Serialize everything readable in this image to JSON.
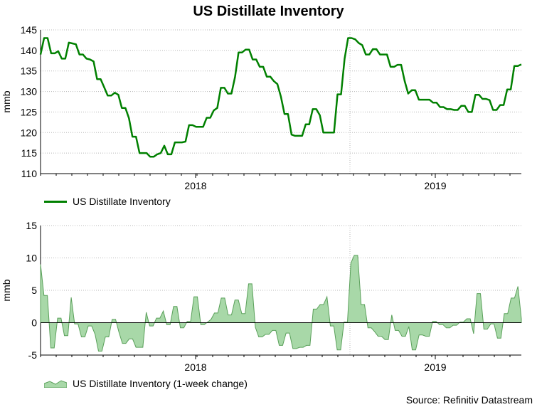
{
  "title": "US Distillate Inventory",
  "source": "Source: Refinitiv Datastream",
  "colors": {
    "line": "#008000",
    "area_fill": "#a8d8a8",
    "area_stroke": "#5aa05a",
    "grid": "#b8b8b8"
  },
  "chart_data": [
    {
      "type": "line",
      "ylabel": "mmb",
      "ylim": [
        110,
        145
      ],
      "yticks": [
        110,
        115,
        120,
        125,
        130,
        135,
        140,
        145
      ],
      "xtick_labels": [
        "2018",
        "2019"
      ],
      "legend": "US Distillate Inventory",
      "series": [
        {
          "name": "US Distillate Inventory",
          "values": [
            139,
            143,
            143,
            139.3,
            139.3,
            139.8,
            138,
            138,
            141.9,
            141.7,
            141.5,
            139,
            139,
            138,
            137.8,
            137.3,
            133,
            133,
            131,
            129,
            129,
            129.7,
            129.2,
            126,
            126,
            123.5,
            119,
            119,
            115,
            115,
            115,
            114.1,
            114.1,
            114.7,
            115,
            116.8,
            114.7,
            114.7,
            117.6,
            117.6,
            117.6,
            117.8,
            121.8,
            121.8,
            121.4,
            121.4,
            121.4,
            123.6,
            123.6,
            125.4,
            126,
            130.9,
            130.9,
            129.5,
            129.5,
            133.5,
            139.5,
            139.5,
            140.2,
            140.2,
            137.8,
            137.8,
            136,
            136,
            133.6,
            133.6,
            132.5,
            131.8,
            128.7,
            124.5,
            124.5,
            119.5,
            119.2,
            119.2,
            119.2,
            122,
            122,
            125.7,
            125.7,
            124.2,
            120,
            120,
            120,
            120,
            129.3,
            129.3,
            138,
            143,
            143,
            142.7,
            141.8,
            141.3,
            139,
            139,
            140.3,
            140.3,
            139,
            139,
            139,
            136,
            136,
            136.5,
            136.5,
            132.5,
            129.5,
            130.3,
            130.3,
            128,
            128,
            128,
            128,
            127.3,
            127.3,
            126.2,
            126.2,
            125.7,
            125.7,
            125.5,
            125.5,
            126.5,
            126.5,
            125,
            125,
            129.2,
            129.2,
            128.2,
            128.2,
            127.9,
            125.5,
            125.5,
            126.7,
            126.7,
            130.5,
            130.5,
            136.2,
            136.2,
            136.6
          ]
        }
      ]
    },
    {
      "type": "area",
      "ylabel": "mmb",
      "ylim": [
        -5,
        15
      ],
      "yticks": [
        -5,
        0,
        5,
        10,
        15
      ],
      "xtick_labels": [
        "2018",
        "2019"
      ],
      "legend": "US Distillate Inventory (1-week change)",
      "series": [
        {
          "name": "US Distillate Inventory (1-week change)",
          "values": [
            9,
            4.2,
            4.2,
            -3.9,
            -3.9,
            0.7,
            0.7,
            -2,
            -2,
            3.9,
            -0.2,
            -0.2,
            -2.2,
            -2.2,
            -0.5,
            -0.5,
            -1.8,
            -4.4,
            -4.4,
            -2.2,
            -2.2,
            0.5,
            0.5,
            -1.5,
            -3.2,
            -3.2,
            -2.5,
            -2.5,
            -3.8,
            -3.8,
            -3.8,
            1.6,
            -0.5,
            -0.5,
            0.7,
            0.7,
            1.8,
            -0.3,
            -0.3,
            2.5,
            2.5,
            -0.8,
            -0.8,
            0.2,
            0.2,
            4,
            4,
            -0.3,
            -0.3,
            0.1,
            0.5,
            1.5,
            1.5,
            3.8,
            3.8,
            1.2,
            1.2,
            3.5,
            3.5,
            1.4,
            1.4,
            6,
            6,
            -0.7,
            -2.2,
            -2.2,
            -1.8,
            -1.8,
            -1.2,
            -1.2,
            -3.5,
            -3.5,
            -1.6,
            -1.6,
            -4,
            -4,
            -3.8,
            -3.8,
            -3.5,
            -3.5,
            2.1,
            2.1,
            2.8,
            2.8,
            4,
            -0.5,
            -0.5,
            -4.2,
            -4.2,
            0.1,
            0.1,
            9.2,
            10.4,
            10.4,
            2.8,
            2.8,
            -0.8,
            -0.8,
            -1.4,
            -2.1,
            -2.1,
            -2.6,
            -2.6,
            1.2,
            -1.2,
            -1.2,
            -2.1,
            -2.1,
            -0.6,
            -4.2,
            -4.2,
            -1.9,
            -1.9,
            -2.1,
            -2.1,
            0.2,
            0.2,
            -0.3,
            -0.3,
            -0.8,
            -0.8,
            -0.4,
            -0.4,
            0.1,
            0.1,
            0.6,
            0.6,
            -1.7,
            4.5,
            4.5,
            -1,
            -1,
            -0.2,
            -0.2,
            -2.4,
            -2.4,
            1.4,
            1.4,
            3.8,
            3.8,
            5.6,
            0.6
          ]
        }
      ]
    }
  ]
}
